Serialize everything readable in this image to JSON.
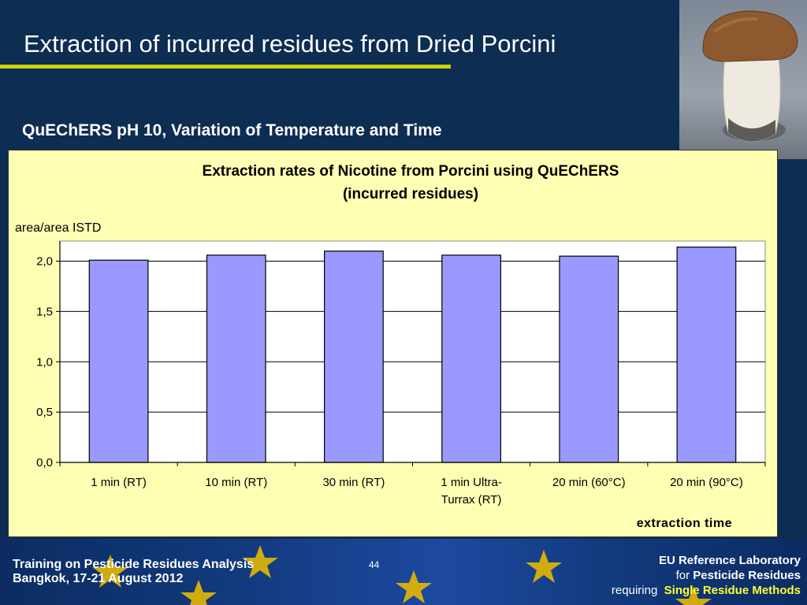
{
  "slide": {
    "title": "Extraction of incurred residues from Dried Porcini",
    "subtitle": "QuEChERS pH 10, Variation of Temperature and Time",
    "photo_icon": "porcini-mushroom"
  },
  "footer": {
    "left_line1": "Training on Pesticide Residues Analysis",
    "left_line2": "Bangkok, 17-21 August 2012",
    "page_number": "44",
    "right_line1": "EU Reference Laboratory",
    "right_line2_prefix": "for",
    "right_line2_main": "Pesticide Residues",
    "right_line3_prefix": "requiring",
    "right_line3_main": "Single Residue Methods",
    "icon": "eu-flag-stars"
  },
  "chart_data": {
    "type": "bar",
    "title_line1": "Extraction rates of Nicotine from Porcini using QuEChERS",
    "title_line2": "(incurred residues)",
    "ylabel": "area/area ISTD",
    "xlabel": "extraction time",
    "categories": [
      [
        "1 min (RT)"
      ],
      [
        "10 min (RT)"
      ],
      [
        "30 min (RT)"
      ],
      [
        "1 min Ultra-",
        "Turrax (RT)"
      ],
      [
        "20 min (60°C)"
      ],
      [
        "20 min (90°C)"
      ]
    ],
    "values": [
      2.01,
      2.06,
      2.1,
      2.06,
      2.05,
      2.14
    ],
    "ylim": [
      0,
      2.2
    ],
    "yticks": [
      0,
      0.5,
      1.0,
      1.5,
      2.0
    ],
    "ytick_labels": [
      "0,0",
      "0,5",
      "1,0",
      "1,5",
      "2,0"
    ],
    "grid": true,
    "bar_color": "#9999ff",
    "plot_background": "#ffffff",
    "panel_background": "#ffffb4"
  }
}
